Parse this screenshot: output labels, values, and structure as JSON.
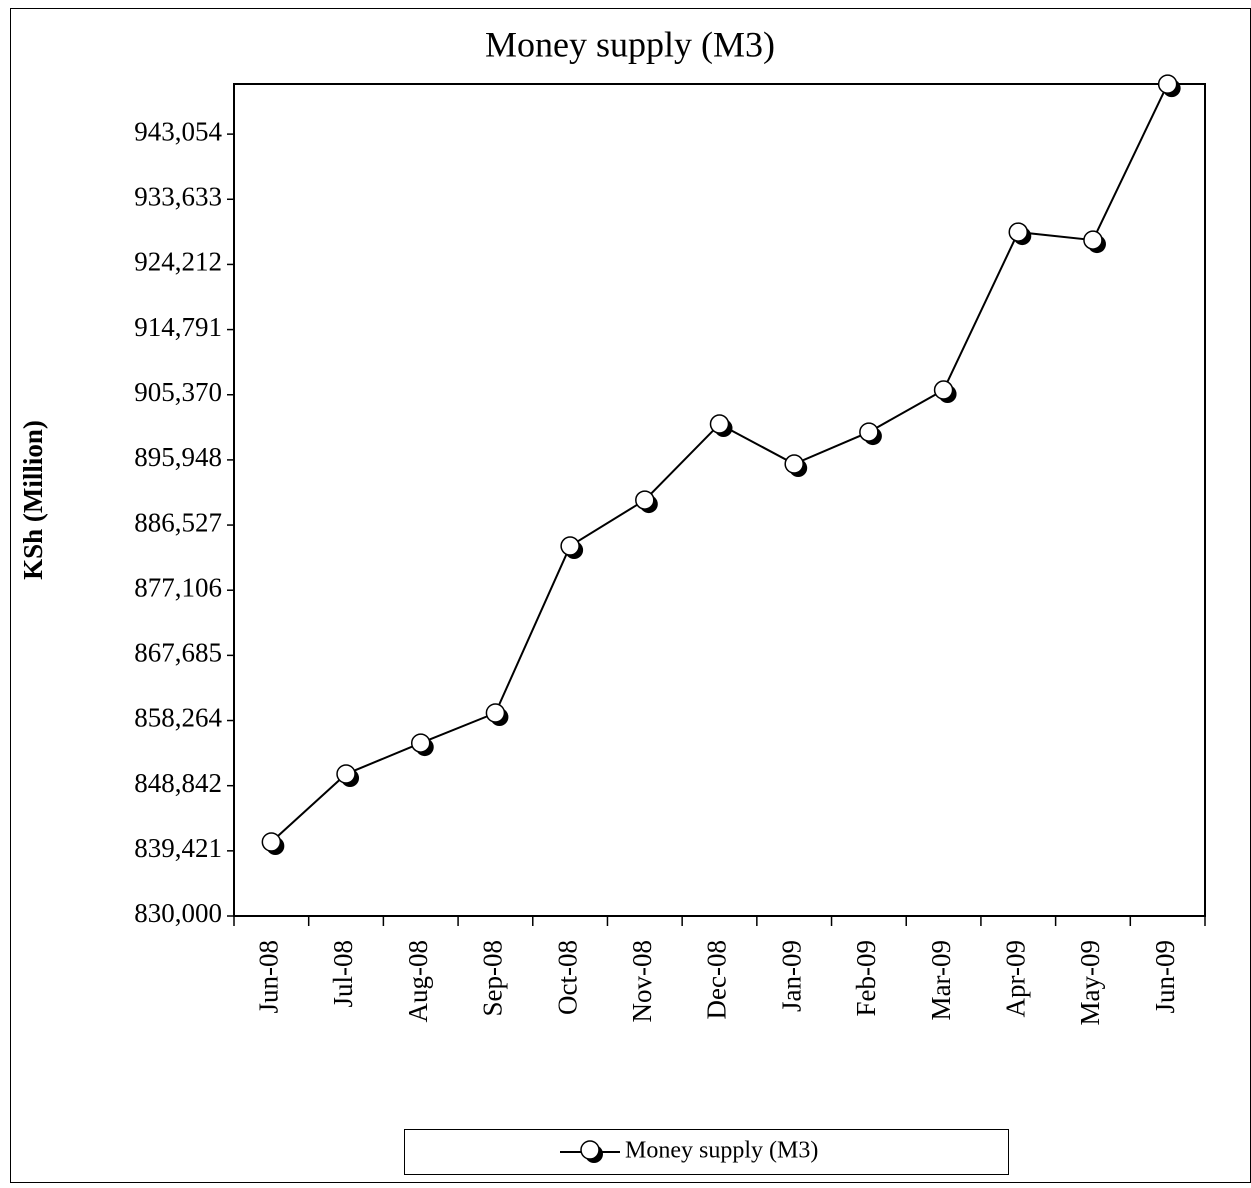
{
  "chart_data": {
    "type": "line",
    "title": "Money supply (M3)",
    "y_label": "KSh (Million)",
    "categories": [
      "Jun-08",
      "Jul-08",
      "Aug-08",
      "Sep-08",
      "Oct-08",
      "Nov-08",
      "Dec-08",
      "Jan-09",
      "Feb-09",
      "Mar-09",
      "Apr-09",
      "May-09",
      "Jun-09"
    ],
    "series": [
      {
        "name": "Money supply (M3)",
        "color": "#000000",
        "values": [
          840700,
          850530,
          855000,
          859350,
          883490,
          890140,
          901130,
          895350,
          899970,
          906050,
          928890,
          927730,
          950280
        ]
      }
    ],
    "ylim": [
      830000,
      950300
    ],
    "yticks": [
      {
        "value": 830000,
        "label": "830,000"
      },
      {
        "value": 839421,
        "label": "839,421"
      },
      {
        "value": 848842,
        "label": "848,842"
      },
      {
        "value": 858264,
        "label": "858,264"
      },
      {
        "value": 867685,
        "label": "867,685"
      },
      {
        "value": 877106,
        "label": "877,106"
      },
      {
        "value": 886527,
        "label": "886,527"
      },
      {
        "value": 895948,
        "label": "895,948"
      },
      {
        "value": 905370,
        "label": "905,370"
      },
      {
        "value": 914791,
        "label": "914,791"
      },
      {
        "value": 924212,
        "label": "924,212"
      },
      {
        "value": 933633,
        "label": "933,633"
      },
      {
        "value": 943054,
        "label": "943,054"
      }
    ],
    "legend": "bottom"
  }
}
